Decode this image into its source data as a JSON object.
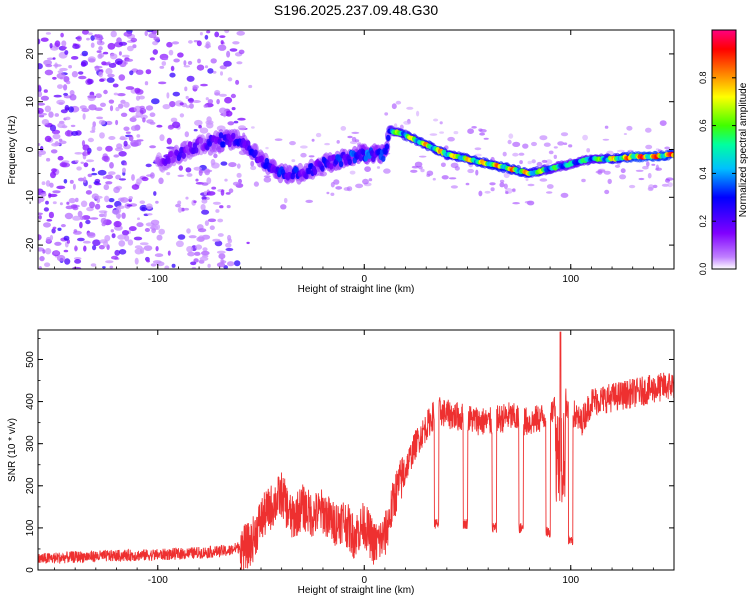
{
  "figure_title": "S196.2025.237.09.48.G30",
  "chart_data": [
    {
      "type": "heatmap",
      "title": "S196.2025.237.09.48.G30",
      "xlabel": "Height of straight line (km)",
      "ylabel": "Frequency (Hz)",
      "xlim": [
        -158,
        150
      ],
      "ylim": [
        -25,
        25
      ],
      "xticks": [
        -100,
        0,
        100
      ],
      "yticks": [
        -20,
        -10,
        0,
        10,
        20
      ],
      "xtick_labels": [
        "-100",
        "0",
        "100"
      ],
      "ytick_labels": [
        "-20",
        "-10",
        "0",
        "10",
        "20"
      ],
      "colorbar": {
        "label": "Normalized spectral amplitude",
        "range": [
          0,
          1
        ],
        "ticks": [
          0,
          0.2,
          0.4,
          0.6,
          0.8
        ],
        "tick_labels": [
          "0.0",
          "0.2",
          "0.4",
          "0.6",
          "0.8"
        ],
        "colors": [
          "#ffffff",
          "#c080ff",
          "#8000ff",
          "#0000ff",
          "#00c0ff",
          "#00ffa0",
          "#40ff00",
          "#ffff00",
          "#ff8000",
          "#ff0000",
          "#ff0080"
        ]
      },
      "ridge": {
        "x": [
          -100,
          -90,
          -80,
          -70,
          -60,
          -50,
          -40,
          -30,
          -20,
          -10,
          0,
          10,
          12,
          20,
          30,
          40,
          50,
          60,
          70,
          80,
          90,
          100,
          110,
          120,
          130,
          140,
          150
        ],
        "freq": [
          -3,
          -1,
          1,
          2,
          2,
          -2,
          -5,
          -5,
          -3,
          -2,
          -1,
          -1,
          4,
          3,
          1,
          -1,
          -2,
          -3,
          -4,
          -5,
          -4,
          -3,
          -2,
          -2,
          -1.5,
          -1.5,
          -1
        ],
        "amplitude": [
          0.15,
          0.25,
          0.2,
          0.3,
          0.3,
          0.3,
          0.35,
          0.3,
          0.3,
          0.35,
          0.4,
          0.35,
          0.6,
          0.75,
          0.8,
          0.8,
          0.8,
          0.85,
          0.85,
          0.8,
          0.6,
          0.55,
          0.6,
          0.75,
          0.95,
          0.95,
          0.9
        ]
      }
    },
    {
      "type": "line",
      "xlabel": "Height of straight line (km)",
      "ylabel": "SNR (10 * v/v)",
      "xlim": [
        -158,
        150
      ],
      "ylim": [
        0,
        570
      ],
      "xticks": [
        -100,
        0,
        100
      ],
      "yticks": [
        0,
        100,
        200,
        300,
        400,
        500
      ],
      "xtick_labels": [
        "-100",
        "0",
        "100"
      ],
      "ytick_labels": [
        "0",
        "100",
        "200",
        "300",
        "400",
        "500"
      ],
      "series": [
        {
          "name": "SNR",
          "color": "#ee3030",
          "x": [
            -158,
            -140,
            -120,
            -100,
            -80,
            -65,
            -55,
            -50,
            -45,
            -40,
            -35,
            -30,
            -25,
            -20,
            -15,
            -10,
            -5,
            0,
            5,
            10,
            15,
            20,
            25,
            30,
            35,
            40,
            50,
            60,
            70,
            80,
            90,
            95,
            100,
            105,
            110,
            120,
            130,
            140,
            150
          ],
          "y": [
            20,
            25,
            28,
            30,
            35,
            40,
            60,
            120,
            150,
            180,
            120,
            150,
            130,
            140,
            110,
            120,
            80,
            110,
            60,
            80,
            180,
            240,
            300,
            340,
            380,
            370,
            360,
            350,
            365,
            350,
            370,
            420,
            380,
            350,
            400,
            410,
            420,
            430,
            440
          ],
          "dips": [
            {
              "x": 35,
              "y": 110
            },
            {
              "x": 49,
              "y": 110
            },
            {
              "x": 63,
              "y": 100
            },
            {
              "x": 76,
              "y": 100
            },
            {
              "x": 89,
              "y": 90
            },
            {
              "x": 100,
              "y": 70
            }
          ],
          "spike": {
            "x": 95,
            "y": 565
          }
        }
      ]
    }
  ]
}
